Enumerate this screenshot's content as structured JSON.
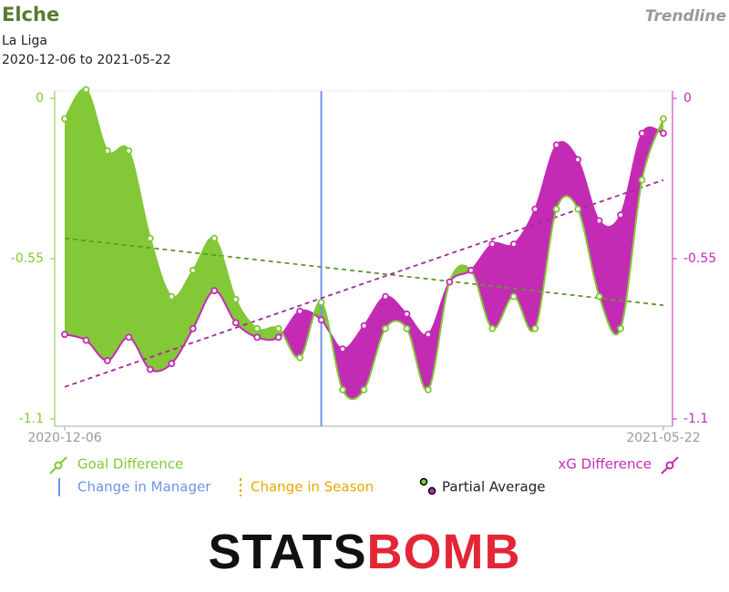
{
  "chart_data": {
    "type": "area-diff",
    "title": "Elche",
    "subtitle": "La Liga",
    "date_range": "2020-12-06 to 2021-05-22",
    "view": "Trendline",
    "categories": [
      "2020-12-06",
      null,
      null,
      null,
      null,
      null,
      null,
      null,
      null,
      null,
      null,
      null,
      null,
      null,
      null,
      null,
      null,
      null,
      null,
      null,
      null,
      null,
      null,
      null,
      null,
      null,
      null,
      null,
      "2021-05-22"
    ],
    "series": [
      {
        "name": "Goal Difference",
        "color": "#82c837",
        "axis": "y",
        "values": [
          -0.07,
          0.03,
          -0.18,
          -0.18,
          -0.48,
          -0.68,
          -0.59,
          -0.48,
          -0.69,
          -0.79,
          -0.79,
          -0.89,
          -0.7,
          -1.0,
          -1.0,
          -0.79,
          -0.79,
          -1.0,
          -0.63,
          -0.59,
          -0.79,
          -0.68,
          -0.79,
          -0.38,
          -0.38,
          -0.68,
          -0.79,
          -0.28,
          -0.07
        ],
        "trend": [
          -0.48,
          -0.71
        ]
      },
      {
        "name": "xG Difference",
        "color": "#c42bb5",
        "axis": "y2",
        "values": [
          -0.81,
          -0.83,
          -0.9,
          -0.82,
          -0.93,
          -0.91,
          -0.79,
          -0.66,
          -0.77,
          -0.82,
          -0.82,
          -0.73,
          -0.76,
          -0.86,
          -0.78,
          -0.68,
          -0.74,
          -0.81,
          -0.63,
          -0.59,
          -0.5,
          -0.5,
          -0.38,
          -0.16,
          -0.21,
          -0.42,
          -0.4,
          -0.12,
          -0.12
        ],
        "trend": [
          -0.99,
          -0.28
        ]
      }
    ],
    "ylim": [
      -1.125,
      0.025
    ],
    "yticks": [
      0,
      -0.55,
      -1.1
    ],
    "y2lim": [
      -1.125,
      0.025
    ],
    "y2ticks": [
      0,
      -0.55,
      -1.1
    ],
    "manager_change_index": 12,
    "legend": {
      "manager": "Change in Manager",
      "season": "Change in Season",
      "average": "Partial Average"
    },
    "logo": {
      "left": "STATS",
      "right": "BOMB"
    }
  }
}
